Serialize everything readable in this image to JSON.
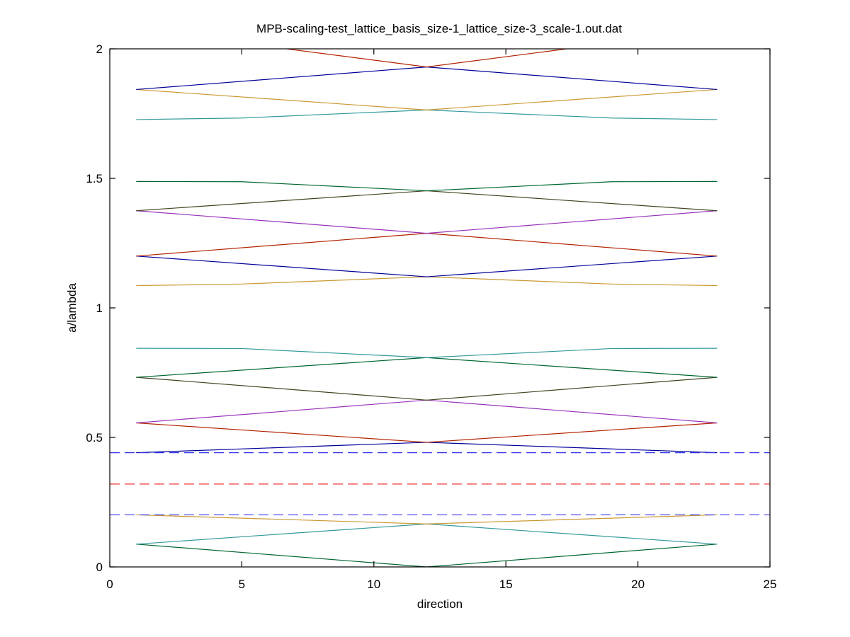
{
  "chart_data": {
    "type": "line",
    "title": "MPB-scaling-test_lattice_basis_size-1_lattice_size-3_scale-1.out.dat",
    "xlabel": "direction",
    "ylabel": "a/lambda",
    "xlim": [
      0,
      25
    ],
    "ylim": [
      0,
      2
    ],
    "x_ticks": [
      0,
      5,
      10,
      15,
      20,
      25
    ],
    "y_ticks": [
      0,
      0.5,
      1,
      1.5,
      2
    ],
    "x_tick_labels": [
      "0",
      "5",
      "10",
      "15",
      "20",
      "25"
    ],
    "y_tick_labels": [
      "0",
      "0.5",
      "1",
      "1.5",
      "2"
    ],
    "grid": false,
    "legend": "none",
    "series": [
      {
        "color": "#006633",
        "points": [
          [
            1,
            0.088
          ],
          [
            12,
            0.0
          ],
          [
            23,
            0.088
          ]
        ]
      },
      {
        "color": "#339999",
        "points": [
          [
            1,
            0.088
          ],
          [
            12,
            0.166
          ],
          [
            23,
            0.088
          ]
        ]
      },
      {
        "color": "#cc9933",
        "points": [
          [
            1,
            0.201
          ],
          [
            12,
            0.166
          ],
          [
            23,
            0.201
          ]
        ]
      },
      {
        "color": "#000099",
        "points": [
          [
            1,
            0.441
          ],
          [
            12,
            0.481
          ],
          [
            23,
            0.441
          ]
        ]
      },
      {
        "color": "#b22200",
        "points": [
          [
            1,
            0.556
          ],
          [
            12,
            0.481
          ],
          [
            23,
            0.556
          ]
        ]
      },
      {
        "color": "#9933bb",
        "points": [
          [
            1,
            0.556
          ],
          [
            12,
            0.644
          ],
          [
            23,
            0.556
          ]
        ]
      },
      {
        "color": "#444422",
        "points": [
          [
            1,
            0.732
          ],
          [
            12,
            0.644
          ],
          [
            23,
            0.732
          ]
        ]
      },
      {
        "color": "#006633",
        "points": [
          [
            1,
            0.732
          ],
          [
            12,
            0.808
          ],
          [
            23,
            0.732
          ]
        ]
      },
      {
        "color": "#339999",
        "points": [
          [
            1,
            0.844
          ],
          [
            5,
            0.843
          ],
          [
            12,
            0.808
          ],
          [
            19,
            0.843
          ],
          [
            23,
            0.844
          ]
        ]
      },
      {
        "color": "#cc9933",
        "points": [
          [
            1,
            1.086
          ],
          [
            5,
            1.092
          ],
          [
            12,
            1.12
          ],
          [
            19,
            1.092
          ],
          [
            23,
            1.086
          ]
        ]
      },
      {
        "color": "#000099",
        "points": [
          [
            1,
            1.2
          ],
          [
            12,
            1.12
          ],
          [
            23,
            1.2
          ]
        ]
      },
      {
        "color": "#b22200",
        "points": [
          [
            1,
            1.2
          ],
          [
            12,
            1.288
          ],
          [
            23,
            1.2
          ]
        ]
      },
      {
        "color": "#9933bb",
        "points": [
          [
            1,
            1.375
          ],
          [
            12,
            1.288
          ],
          [
            23,
            1.375
          ]
        ]
      },
      {
        "color": "#444422",
        "points": [
          [
            1,
            1.375
          ],
          [
            12,
            1.452
          ],
          [
            23,
            1.375
          ]
        ]
      },
      {
        "color": "#006633",
        "points": [
          [
            1,
            1.488
          ],
          [
            5,
            1.487
          ],
          [
            12,
            1.452
          ],
          [
            19,
            1.487
          ],
          [
            23,
            1.488
          ]
        ]
      },
      {
        "color": "#339999",
        "points": [
          [
            1,
            1.727
          ],
          [
            5,
            1.733
          ],
          [
            12,
            1.764
          ],
          [
            19,
            1.733
          ],
          [
            23,
            1.727
          ]
        ]
      },
      {
        "color": "#cc9933",
        "points": [
          [
            1,
            1.843
          ],
          [
            12,
            1.764
          ],
          [
            23,
            1.843
          ]
        ]
      },
      {
        "color": "#000099",
        "points": [
          [
            1,
            1.843
          ],
          [
            12,
            1.93
          ],
          [
            23,
            1.843
          ]
        ]
      },
      {
        "color": "#b22200",
        "points": [
          [
            1,
            2.075
          ],
          [
            12,
            1.93
          ],
          [
            23,
            2.075
          ]
        ]
      }
    ],
    "reference_lines": [
      {
        "y": 0.441,
        "color": "#3333ee",
        "style": "dashed"
      },
      {
        "y": 0.32,
        "color": "#ee3333",
        "style": "dashed"
      },
      {
        "y": 0.201,
        "color": "#3333ee",
        "style": "dashed"
      }
    ]
  }
}
